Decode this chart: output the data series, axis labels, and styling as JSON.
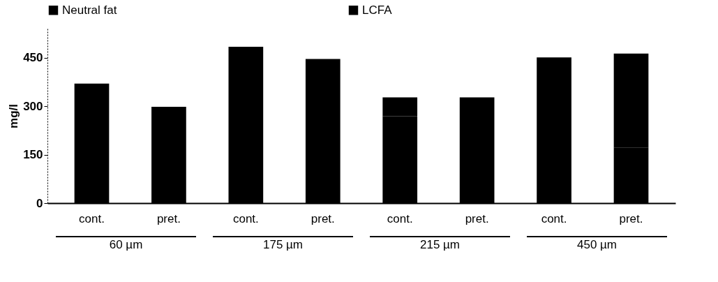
{
  "chart_data": {
    "type": "bar",
    "stacked": true,
    "ylabel": "mg/l",
    "categories": [
      "cont.",
      "pret.",
      "cont.",
      "pret.",
      "cont.",
      "pret.",
      "cont.",
      "pret."
    ],
    "series": [
      {
        "name": "Neutral fat",
        "color": "#000000",
        "values": [
          370,
          298,
          484,
          446,
          269,
          327,
          281,
          172
        ]
      },
      {
        "name": "LCFA",
        "color": "#000000",
        "values": [
          0,
          0,
          0,
          0,
          58,
          0,
          170,
          291
        ]
      }
    ],
    "ylim": [
      0,
      540
    ],
    "yticks": [
      0,
      150,
      300,
      450
    ],
    "grid": false,
    "legend": "top",
    "annotations": [
      "60 µm",
      "175 µm",
      "215 µm",
      "450 µm"
    ]
  }
}
